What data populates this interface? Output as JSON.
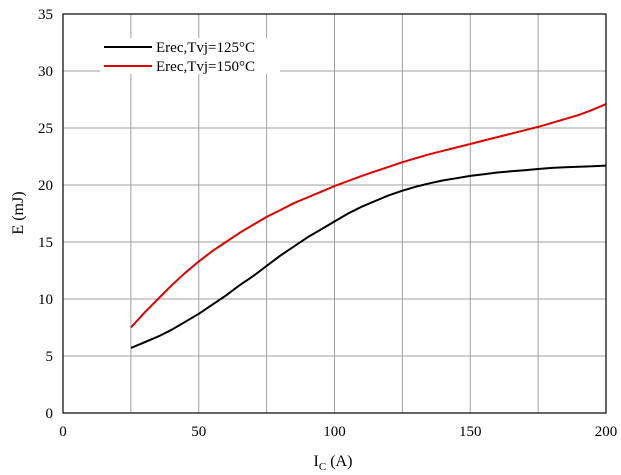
{
  "chart_data": {
    "type": "line",
    "xlabel": "I",
    "xlabel_sub": "C",
    "xlabel_unit": "(A)",
    "ylabel": "E (mJ)",
    "xlim": [
      0,
      200
    ],
    "ylim": [
      0,
      35
    ],
    "xticks": [
      0,
      50,
      100,
      150,
      200
    ],
    "yticks": [
      0,
      5,
      10,
      15,
      20,
      25,
      30,
      35
    ],
    "x_grid_step": 25,
    "y_grid_step": 5,
    "grid": true,
    "legend_position": "top-left",
    "series": [
      {
        "name": "Erec,Tvj=125°C",
        "color": "#000000",
        "x": [
          25,
          30,
          35,
          40,
          45,
          50,
          55,
          60,
          65,
          70,
          75,
          80,
          85,
          90,
          95,
          100,
          105,
          110,
          115,
          120,
          125,
          130,
          135,
          140,
          145,
          150,
          155,
          160,
          165,
          170,
          175,
          180,
          185,
          190,
          195,
          200
        ],
        "y": [
          5.7,
          6.2,
          6.7,
          7.3,
          8.0,
          8.7,
          9.5,
          10.3,
          11.2,
          12.0,
          12.9,
          13.8,
          14.6,
          15.4,
          16.1,
          16.8,
          17.5,
          18.1,
          18.6,
          19.1,
          19.5,
          19.85,
          20.15,
          20.4,
          20.6,
          20.8,
          20.95,
          21.1,
          21.2,
          21.3,
          21.4,
          21.5,
          21.55,
          21.6,
          21.65,
          21.7
        ]
      },
      {
        "name": "Erec,Tvj=150°C",
        "color": "#e00000",
        "x": [
          25,
          30,
          35,
          40,
          45,
          50,
          55,
          60,
          65,
          70,
          75,
          80,
          85,
          90,
          95,
          100,
          105,
          110,
          115,
          120,
          125,
          130,
          135,
          140,
          145,
          150,
          155,
          160,
          165,
          170,
          175,
          180,
          185,
          190,
          195,
          200
        ],
        "y": [
          7.5,
          8.8,
          10.0,
          11.2,
          12.3,
          13.3,
          14.2,
          15.0,
          15.8,
          16.5,
          17.2,
          17.8,
          18.4,
          18.9,
          19.4,
          19.9,
          20.35,
          20.8,
          21.2,
          21.6,
          22.0,
          22.35,
          22.7,
          23.0,
          23.3,
          23.6,
          23.9,
          24.2,
          24.5,
          24.8,
          25.1,
          25.45,
          25.8,
          26.15,
          26.6,
          27.1
        ]
      }
    ]
  }
}
